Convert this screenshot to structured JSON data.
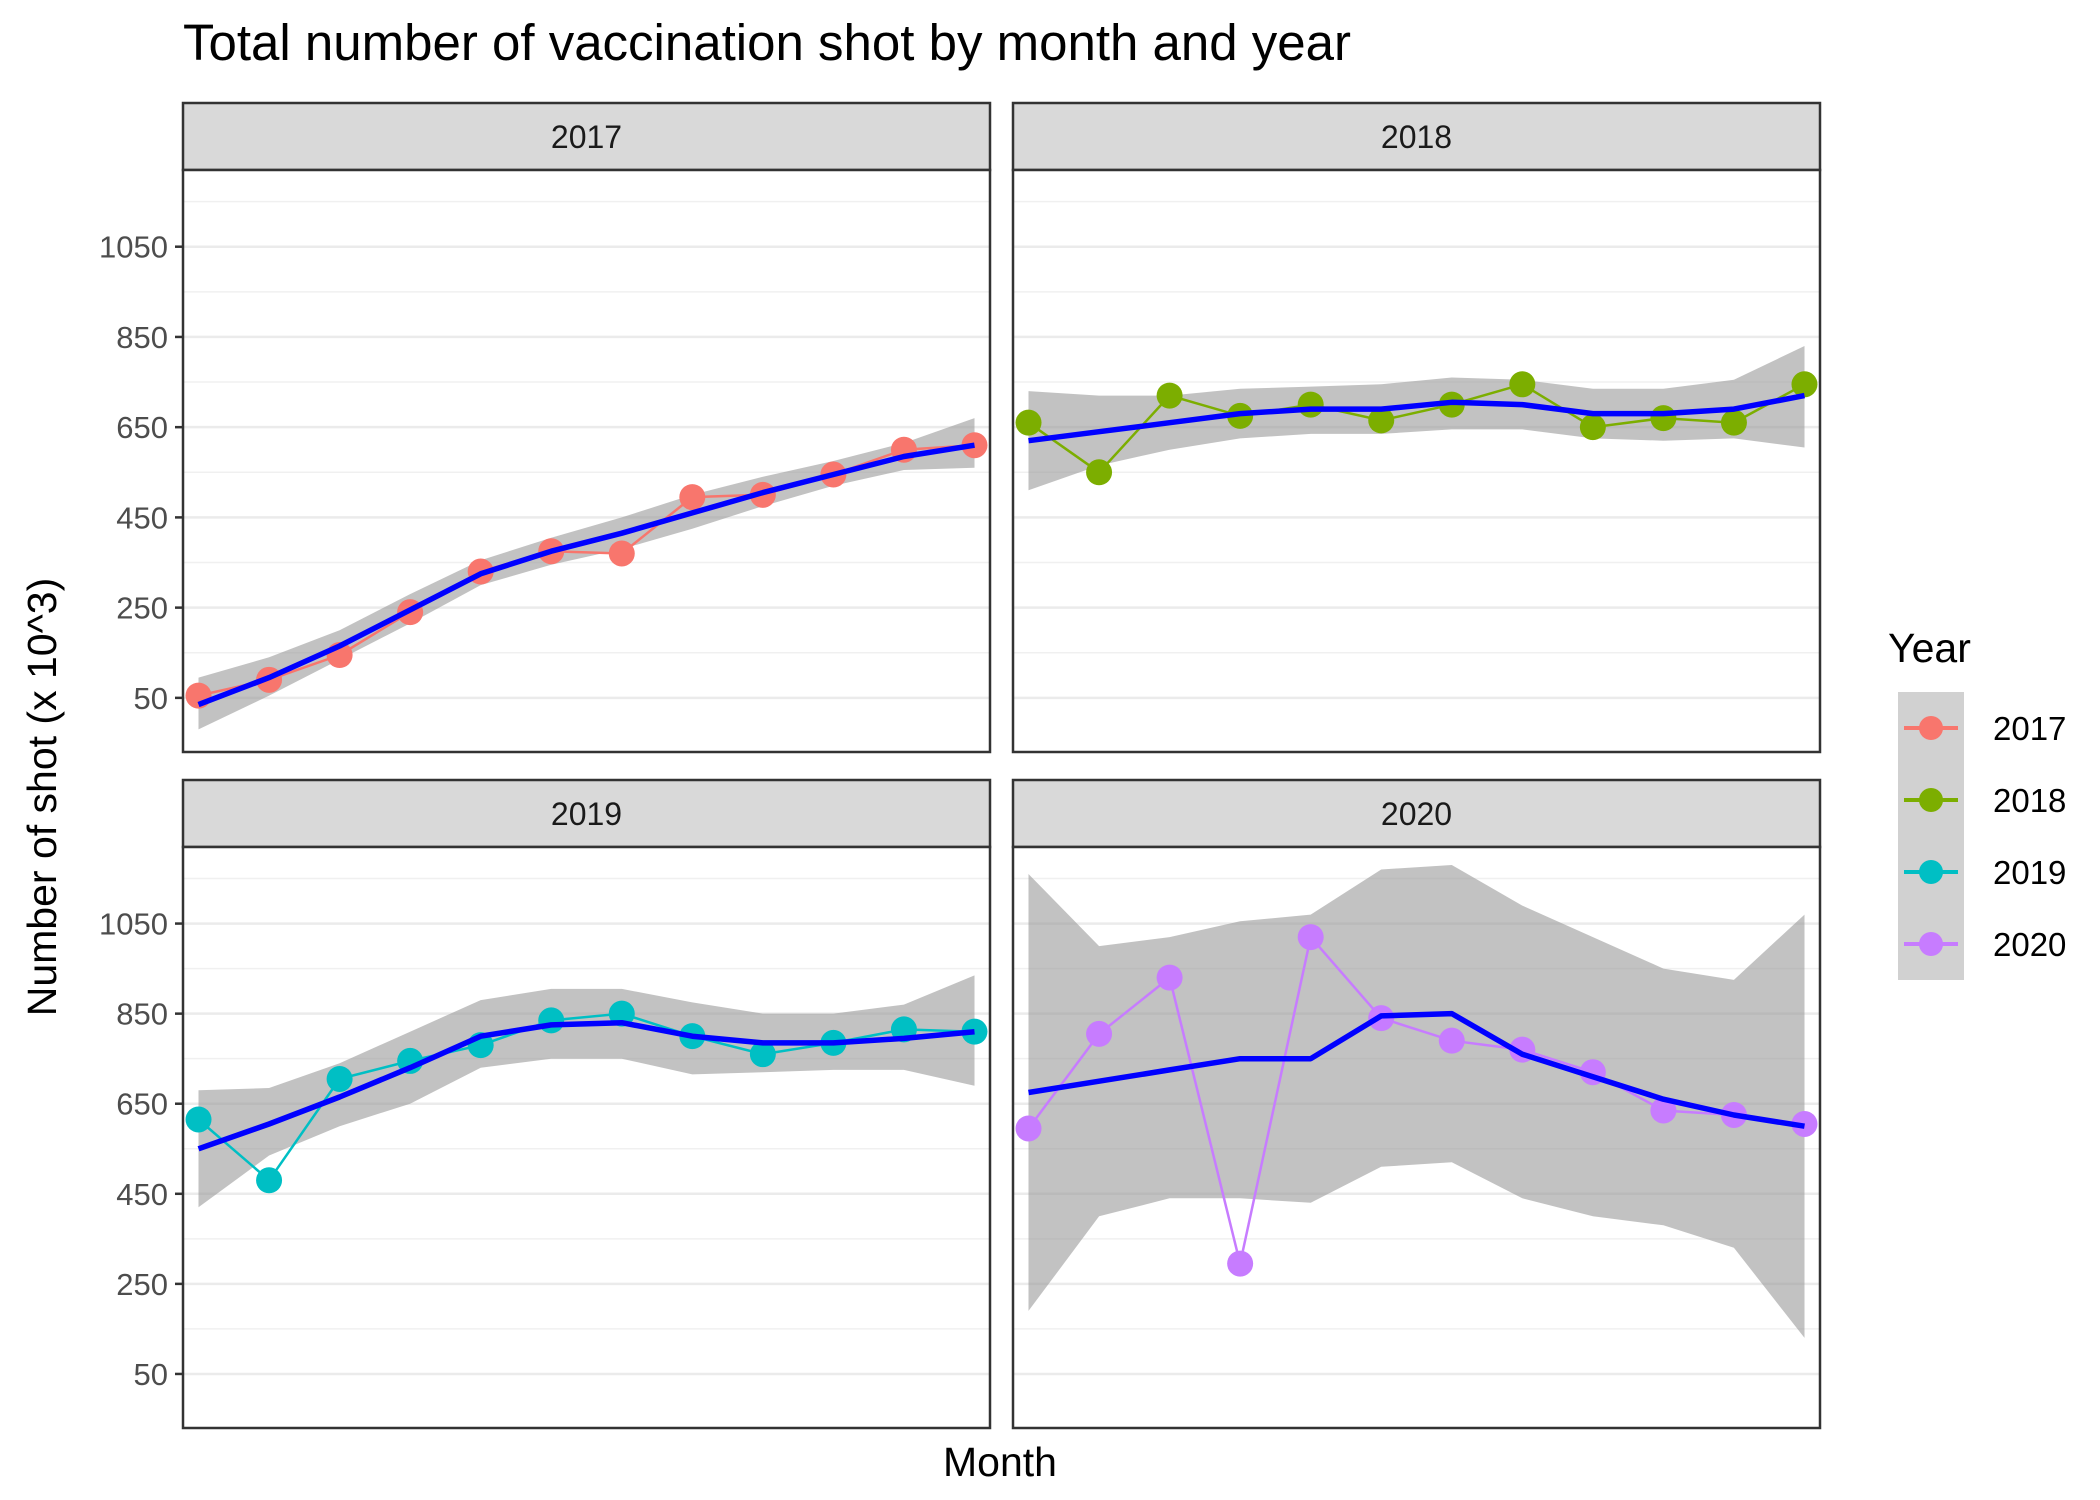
{
  "chart_data": {
    "type": "line",
    "title": "Total number of vaccination shot by month and year",
    "xlabel": "Month",
    "ylabel": "Number of shot (x 10^3)",
    "ylim": [
      -70,
      1220
    ],
    "y_ticks": [
      50,
      250,
      450,
      650,
      850,
      1050
    ],
    "x_ticks": [],
    "grid": true,
    "facet_layout": "2x2",
    "legend": {
      "title": "Year",
      "placement": "right",
      "entries": [
        "2017",
        "2018",
        "2019",
        "2020"
      ]
    },
    "smooth_color": "#0000ff",
    "ribbon_color": "#999999",
    "panels": [
      {
        "label": "2017",
        "color": "#f8766d",
        "x": [
          1,
          2,
          3,
          4,
          5,
          6,
          7,
          8,
          9,
          10,
          11,
          12
        ],
        "values": [
          55,
          90,
          145,
          240,
          330,
          375,
          370,
          495,
          500,
          545,
          600,
          610
        ],
        "smooth": [
          35,
          95,
          165,
          245,
          325,
          375,
          415,
          460,
          505,
          545,
          585,
          610
        ],
        "ribbon_lower": [
          -20,
          55,
          135,
          215,
          300,
          345,
          380,
          425,
          475,
          520,
          555,
          560
        ],
        "ribbon_upper": [
          95,
          140,
          200,
          280,
          355,
          405,
          450,
          500,
          540,
          575,
          615,
          670
        ]
      },
      {
        "label": "2018",
        "color": "#7cae00",
        "x": [
          1,
          2,
          3,
          4,
          5,
          6,
          7,
          8,
          9,
          10,
          11,
          12
        ],
        "values": [
          660,
          550,
          720,
          675,
          700,
          665,
          700,
          745,
          650,
          670,
          660,
          745
        ],
        "smooth": [
          620,
          640,
          660,
          680,
          690,
          690,
          705,
          700,
          680,
          680,
          690,
          720
        ],
        "ribbon_lower": [
          510,
          565,
          600,
          625,
          635,
          635,
          645,
          645,
          625,
          620,
          625,
          605
        ],
        "ribbon_upper": [
          730,
          720,
          720,
          735,
          740,
          745,
          760,
          755,
          735,
          735,
          755,
          830
        ]
      },
      {
        "label": "2019",
        "color": "#00bfc4",
        "x": [
          1,
          2,
          3,
          4,
          5,
          6,
          7,
          8,
          9,
          10,
          11,
          12
        ],
        "values": [
          615,
          480,
          705,
          745,
          780,
          835,
          850,
          800,
          760,
          785,
          815,
          810
        ],
        "smooth": [
          550,
          605,
          665,
          730,
          800,
          825,
          830,
          800,
          785,
          785,
          795,
          810
        ],
        "ribbon_lower": [
          420,
          535,
          600,
          650,
          730,
          750,
          750,
          715,
          720,
          725,
          725,
          690
        ],
        "ribbon_upper": [
          680,
          685,
          740,
          810,
          880,
          905,
          905,
          875,
          850,
          850,
          870,
          935
        ]
      },
      {
        "label": "2020",
        "color": "#c77cff",
        "x": [
          1,
          2,
          3,
          4,
          5,
          6,
          7,
          8,
          9,
          10,
          11,
          12
        ],
        "values": [
          595,
          805,
          930,
          295,
          1020,
          840,
          790,
          770,
          720,
          635,
          625,
          605
        ],
        "smooth": [
          675,
          700,
          725,
          750,
          750,
          845,
          850,
          760,
          710,
          660,
          625,
          600
        ],
        "ribbon_lower": [
          190,
          400,
          440,
          440,
          430,
          510,
          520,
          440,
          400,
          380,
          330,
          130
        ],
        "ribbon_upper": [
          1160,
          1000,
          1020,
          1055,
          1070,
          1170,
          1180,
          1090,
          1020,
          950,
          925,
          1070
        ]
      }
    ]
  }
}
